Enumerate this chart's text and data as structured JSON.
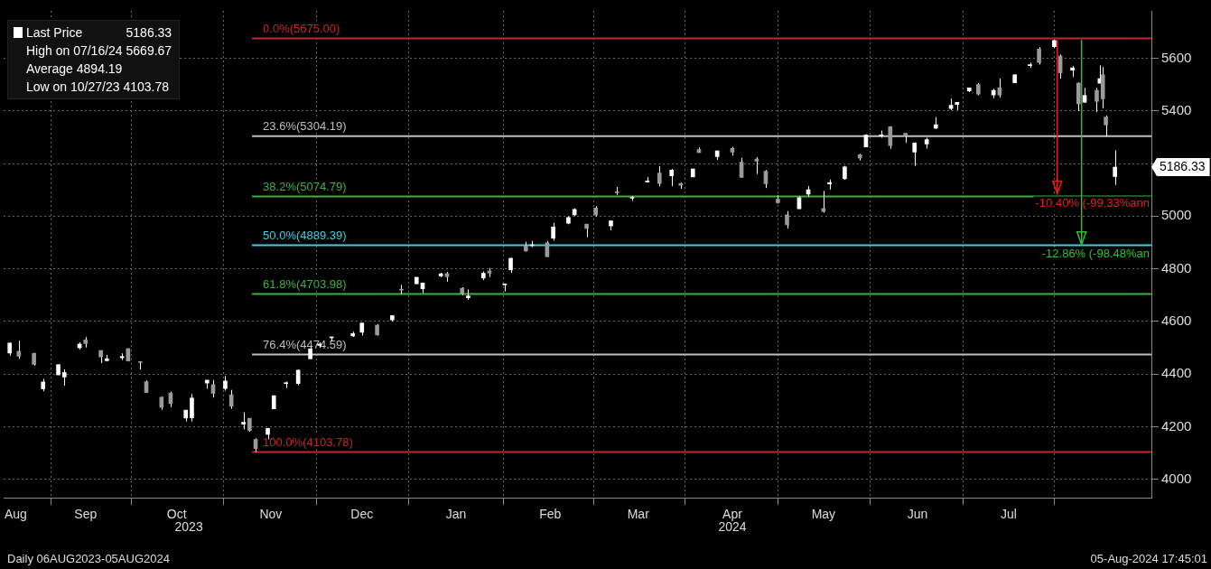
{
  "chart_data": {
    "type": "candlestick",
    "legend": "top left",
    "grid": true,
    "xlim": [
      "2023-08-05",
      "2024-08-17"
    ],
    "xticks": [
      {
        "value": "2023-08-09",
        "label": "Aug"
      },
      {
        "value": "2023-09-01",
        "label": "Sep"
      },
      {
        "value": "2023-10-01",
        "label": "Oct"
      },
      {
        "value": "2023-11-01",
        "label": "Nov"
      },
      {
        "value": "2023-12-01",
        "label": "Dec"
      },
      {
        "value": "2024-01-01",
        "label": "Jan"
      },
      {
        "value": "2024-02-01",
        "label": "Feb"
      },
      {
        "value": "2024-03-01",
        "label": "Mar"
      },
      {
        "value": "2024-04-01",
        "label": "Apr"
      },
      {
        "value": "2024-05-01",
        "label": "May"
      },
      {
        "value": "2024-06-01",
        "label": "Jun"
      },
      {
        "value": "2024-07-01",
        "label": "Jul"
      }
    ],
    "ylim": [
      3930,
      5780
    ],
    "yticks": [
      4000,
      4200,
      4400,
      4600,
      4800,
      5000,
      {
        "value": 5200,
        "label": null
      },
      5400,
      5600
    ],
    "x": [
      "2023-08-07",
      "2023-08-10",
      "2023-08-15",
      "2023-08-18",
      "2023-08-23",
      "2023-08-25",
      "2023-08-30",
      "2023-09-01",
      "2023-09-06",
      "2023-09-08",
      "2023-09-13",
      "2023-09-15",
      "2023-09-19",
      "2023-09-21",
      "2023-09-26",
      "2023-09-29",
      "2023-10-04",
      "2023-10-06",
      "2023-10-11",
      "2023-10-13",
      "2023-10-17",
      "2023-10-19",
      "2023-10-23",
      "2023-10-25",
      "2023-10-27",
      "2023-10-31",
      "2023-11-02",
      "2023-11-06",
      "2023-11-10",
      "2023-11-14",
      "2023-11-17",
      "2023-11-21",
      "2023-11-28",
      "2023-12-01",
      "2023-12-06",
      "2023-12-11",
      "2023-12-14",
      "2023-12-19",
      "2023-12-21",
      "2023-12-27",
      "2023-12-29",
      "2024-01-03",
      "2024-01-05",
      "2024-01-10",
      "2024-01-12",
      "2024-01-17",
      "2024-01-19",
      "2024-01-24",
      "2024-01-26",
      "2024-01-31",
      "2024-02-02",
      "2024-02-07",
      "2024-02-09",
      "2024-02-13",
      "2024-02-16",
      "2024-02-21",
      "2024-02-23",
      "2024-02-28",
      "2024-03-04",
      "2024-03-08",
      "2024-03-12",
      "2024-03-15",
      "2024-03-19",
      "2024-03-21",
      "2024-03-27",
      "2024-04-01",
      "2024-04-04",
      "2024-04-09",
      "2024-04-12",
      "2024-04-16",
      "2024-04-19",
      "2024-04-23",
      "2024-04-26",
      "2024-05-01",
      "2024-05-03",
      "2024-05-08",
      "2024-05-13",
      "2024-05-15",
      "2024-05-20",
      "2024-05-23",
      "2024-05-28",
      "2024-05-31",
      "2024-06-04",
      "2024-06-07",
      "2024-06-12",
      "2024-06-14",
      "2024-06-18",
      "2024-06-21",
      "2024-06-26",
      "2024-06-28",
      "2024-07-03",
      "2024-07-08",
      "2024-07-11",
      "2024-07-16",
      "2024-07-18",
      "2024-07-22",
      "2024-07-24",
      "2024-07-26",
      "2024-07-30",
      "2024-07-31",
      "2024-08-01",
      "2024-08-02",
      "2024-08-05"
    ],
    "series": [
      {
        "name": "Last Price",
        "color": "#ffffff",
        "colors": [
          "#ffffff",
          "#9a9a9a",
          "#9a9a9a",
          "#ffffff",
          "#ffffff",
          "#ffffff",
          "#ffffff",
          "#9a9a9a",
          "#9a9a9a",
          "#ffffff",
          "#ffffff",
          "#9a9a9a",
          "#9a9a9a",
          "#9a9a9a",
          "#9a9a9a",
          "#9a9a9a",
          "#ffffff",
          "#ffffff",
          "#ffffff",
          "#9a9a9a",
          "#ffffff",
          "#9a9a9a",
          "#ffffff",
          "#9a9a9a",
          "#9a9a9a",
          "#ffffff",
          "#ffffff",
          "#ffffff",
          "#ffffff",
          "#ffffff",
          "#ffffff",
          "#ffffff",
          "#ffffff",
          "#ffffff",
          "#9a9a9a",
          "#ffffff",
          "#9a9a9a",
          "#ffffff",
          "#ffffff",
          "#ffffff",
          "#9a9a9a",
          "#9a9a9a",
          "#ffffff",
          "#ffffff",
          "#9a9a9a",
          "#ffffff",
          "#ffffff",
          "#9a9a9a",
          "#ffffff",
          "#9a9a9a",
          "#ffffff",
          "#ffffff",
          "#ffffff",
          "#9a9a9a",
          "#9a9a9a",
          "#ffffff",
          "#9a9a9a",
          "#ffffff",
          "#ffffff",
          "#9a9a9a",
          "#ffffff",
          "#9a9a9a",
          "#ffffff",
          "#9a9a9a",
          "#ffffff",
          "#9a9a9a",
          "#9a9a9a",
          "#9a9a9a",
          "#9a9a9a",
          "#9a9a9a",
          "#9a9a9a",
          "#ffffff",
          "#ffffff",
          "#9a9a9a",
          "#ffffff",
          "#ffffff",
          "#9a9a9a",
          "#ffffff",
          "#ffffff",
          "#9a9a9a",
          "#9a9a9a",
          "#ffffff",
          "#ffffff",
          "#ffffff",
          "#ffffff",
          "#ffffff",
          "#ffffff",
          "#9a9a9a",
          "#ffffff",
          "#9a9a9a",
          "#ffffff",
          "#ffffff",
          "#9a9a9a",
          "#ffffff",
          "#9a9a9a",
          "#ffffff",
          "#9a9a9a",
          "#ffffff",
          "#9a9a9a",
          "#ffffff",
          "#9a9a9a",
          "#9a9a9a",
          "#ffffff"
        ],
        "ohlc": [
          [
            4480,
            4520,
            4470,
            4518
          ],
          [
            4487,
            4527,
            4458,
            4468
          ],
          [
            4479,
            4481,
            4432,
            4437
          ],
          [
            4344,
            4382,
            4335,
            4370
          ],
          [
            4397,
            4437,
            4396,
            4436
          ],
          [
            4389,
            4418,
            4356,
            4406
          ],
          [
            4500,
            4521,
            4493,
            4514
          ],
          [
            4530,
            4541,
            4501,
            4516
          ],
          [
            4490,
            4490,
            4442,
            4465
          ],
          [
            4451,
            4473,
            4448,
            4458
          ],
          [
            4462,
            4479,
            4453,
            4467
          ],
          [
            4497,
            4497,
            4448,
            4450
          ],
          [
            4445,
            4449,
            4417,
            4444
          ],
          [
            4371,
            4376,
            4329,
            4330
          ],
          [
            4312,
            4315,
            4264,
            4274
          ],
          [
            4328,
            4333,
            4274,
            4288
          ],
          [
            4233,
            4264,
            4220,
            4263
          ],
          [
            4234,
            4324,
            4220,
            4309
          ],
          [
            4366,
            4378,
            4345,
            4377
          ],
          [
            4360,
            4378,
            4311,
            4327
          ],
          [
            4345,
            4393,
            4337,
            4374
          ],
          [
            4321,
            4340,
            4268,
            4278
          ],
          [
            4210,
            4255,
            4190,
            4217
          ],
          [
            4232,
            4233,
            4181,
            4186
          ],
          [
            4152,
            4156,
            4103.78,
            4117
          ],
          [
            4171,
            4195,
            4153,
            4194
          ],
          [
            4268,
            4319,
            4268,
            4318
          ],
          [
            4364,
            4372,
            4347,
            4366
          ],
          [
            4364,
            4418,
            4358,
            4415
          ],
          [
            4458,
            4503,
            4458,
            4496
          ],
          [
            4509,
            4521,
            4500,
            4514
          ],
          [
            4538,
            4542,
            4525,
            4538
          ],
          [
            4545,
            4561,
            4541,
            4554
          ],
          [
            4559,
            4595,
            4547,
            4594
          ],
          [
            4586,
            4590,
            4546,
            4549
          ],
          [
            4606,
            4623,
            4600,
            4622
          ],
          [
            4721,
            4739,
            4704,
            4719
          ],
          [
            4743,
            4768,
            4743,
            4768
          ],
          [
            4724,
            4748,
            4708,
            4746
          ],
          [
            4773,
            4785,
            4768,
            4781
          ],
          [
            4782,
            4788,
            4751,
            4770
          ],
          [
            4726,
            4730,
            4699,
            4704
          ],
          [
            4690,
            4722,
            4682,
            4697
          ],
          [
            4765,
            4790,
            4757,
            4783
          ],
          [
            4792,
            4803,
            4769,
            4784
          ],
          [
            4739,
            4744,
            4714,
            4739
          ],
          [
            4796,
            4842,
            4785,
            4840
          ],
          [
            4888,
            4903,
            4865,
            4868
          ],
          [
            4888,
            4906,
            4882,
            4891
          ],
          [
            4899,
            4906,
            4845,
            4846
          ],
          [
            4916,
            4975,
            4907,
            4959
          ],
          [
            4973,
            4999,
            4969,
            4995
          ],
          [
            5005,
            5030,
            5000,
            5026
          ],
          [
            4970,
            4970,
            4920,
            4953
          ],
          [
            5031,
            5038,
            4999,
            5005
          ],
          [
            4963,
            4983,
            4946,
            4982
          ],
          [
            5093,
            5111,
            5081,
            5089
          ],
          [
            5068,
            5077,
            5058,
            5069
          ],
          [
            5130,
            5149,
            5127,
            5131
          ],
          [
            5164,
            5190,
            5114,
            5124
          ],
          [
            5153,
            5179,
            5114,
            5175
          ],
          [
            5124,
            5127,
            5104,
            5117
          ],
          [
            5149,
            5180,
            5149,
            5179
          ],
          [
            5253,
            5261,
            5240,
            5242
          ],
          [
            5226,
            5249,
            5214,
            5248
          ],
          [
            5257,
            5263,
            5230,
            5243
          ],
          [
            5205,
            5222,
            5146,
            5147
          ],
          [
            5217,
            5224,
            5160,
            5209
          ],
          [
            5171,
            5175,
            5107,
            5123
          ],
          [
            5064,
            5079,
            5048,
            5051
          ],
          [
            5005,
            5019,
            4953,
            4967
          ],
          [
            5028,
            5076,
            5027,
            5070
          ],
          [
            5084,
            5114,
            5073,
            5100
          ],
          [
            5029,
            5096,
            5013,
            5018
          ],
          [
            5122,
            5139,
            5101,
            5128
          ],
          [
            5142,
            5191,
            5139,
            5187
          ],
          [
            5233,
            5237,
            5211,
            5221
          ],
          [
            5263,
            5311,
            5263,
            5308
          ],
          [
            5305,
            5325,
            5298,
            5308
          ],
          [
            5340,
            5342,
            5256,
            5268
          ],
          [
            5315,
            5315,
            5279,
            5306
          ],
          [
            5243,
            5280,
            5191,
            5278
          ],
          [
            5274,
            5298,
            5257,
            5291
          ],
          [
            5334,
            5376,
            5331,
            5347
          ],
          [
            5409,
            5447,
            5403,
            5421
          ],
          [
            5424,
            5432,
            5403,
            5432
          ],
          [
            5476,
            5488,
            5471,
            5487
          ],
          [
            5500,
            5506,
            5459,
            5464
          ],
          [
            5460,
            5484,
            5448,
            5478
          ],
          [
            5488,
            5523,
            5451,
            5460
          ],
          [
            5507,
            5539,
            5505,
            5537
          ],
          [
            5572,
            5583,
            5563,
            5572
          ],
          [
            5635,
            5642,
            5576,
            5584
          ],
          [
            5644,
            5669.67,
            5639,
            5667
          ],
          [
            5608,
            5614,
            5522,
            5544
          ],
          [
            5555,
            5570,
            5529,
            5564
          ],
          [
            5505,
            5508,
            5399,
            5427
          ],
          [
            5433,
            5488,
            5430,
            5459
          ],
          [
            5478,
            5487,
            5396,
            5436
          ],
          [
            5505,
            5573,
            5505,
            5522
          ],
          [
            5537,
            5566,
            5410,
            5446
          ],
          [
            5377,
            5383,
            5302,
            5346
          ],
          [
            5151,
            5250,
            5119,
            5186.33
          ]
        ]
      }
    ],
    "ref_lines": [
      {
        "axis": "y",
        "value": 5675,
        "label": "0.0%(5675.00)",
        "color": "#c0282d"
      },
      {
        "axis": "y",
        "value": 5304.19,
        "label": "23.6%(5304.19)",
        "color": "#bfbfbf"
      },
      {
        "axis": "y",
        "value": 5074.79,
        "label": "38.2%(5074.79)",
        "color": "#3cb043"
      },
      {
        "axis": "y",
        "value": 4889.39,
        "label": "50.0%(4889.39)",
        "color": "#40d0e0"
      },
      {
        "axis": "y",
        "value": 4703.98,
        "label": "61.8%(4703.98)",
        "color": "#3cb043"
      },
      {
        "axis": "y",
        "value": 4474.59,
        "label": "76.4%(4474.59)",
        "color": "#bfbfbf"
      },
      {
        "axis": "y",
        "value": 4103.78,
        "label": "100.0%(4103.78)",
        "color": "#c0282d"
      }
    ],
    "annotations": [
      "5186.33",
      "High on 07/16/24 5669.67",
      "Average 4894.19",
      "Low on 10/27/23 4103.78",
      "5186.33",
      "2023",
      "2024",
      {
        "text": "-10.40% (-99.33%ann",
        "x": "2024-07-17",
        "y": 5085
      },
      {
        "text": "-12.86% (-98.48%an",
        "x": "2024-07-25",
        "y": 4892
      },
      "Daily 06AUG2023-05AUG2024",
      "05-Aug-2024 17:45:01"
    ]
  }
}
